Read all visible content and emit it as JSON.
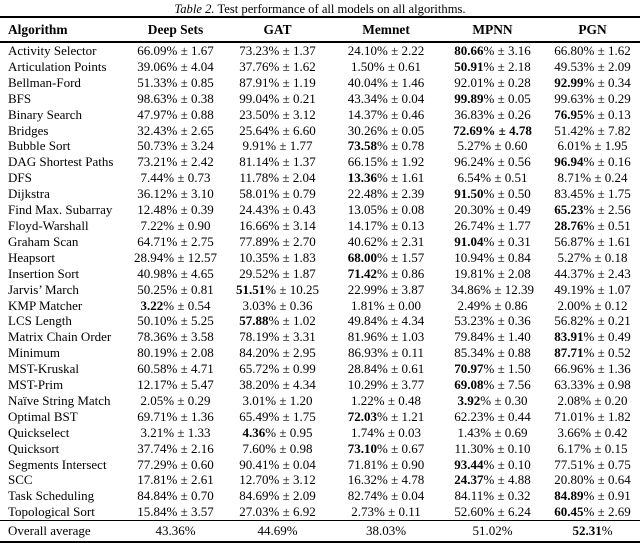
{
  "colors": {
    "background": "#ffffff",
    "text": "#000000",
    "rule": "#000000"
  },
  "caption": {
    "tag": "Table 2.",
    "text": " Test performance of all models on all algorithms."
  },
  "table": {
    "columns": [
      "Algorithm",
      "Deep Sets",
      "GAT",
      "Memnet",
      "MPNN",
      "PGN"
    ],
    "value_format": "{mean}% ± {err}",
    "rows": [
      {
        "algorithm": "Activity Selector",
        "cells": [
          [
            "66.09",
            "1.67"
          ],
          [
            "73.23",
            "1.37"
          ],
          [
            "24.10",
            "2.22"
          ],
          [
            "80.66",
            "3.16"
          ],
          [
            "66.80",
            "1.62"
          ]
        ],
        "best": 3
      },
      {
        "algorithm": "Articulation Points",
        "cells": [
          [
            "39.06",
            "4.04"
          ],
          [
            "37.76",
            "1.62"
          ],
          [
            "1.50",
            "0.61"
          ],
          [
            "50.91",
            "2.18"
          ],
          [
            "49.53",
            "2.09"
          ]
        ],
        "best": 3
      },
      {
        "algorithm": "Bellman-Ford",
        "cells": [
          [
            "51.33",
            "0.85"
          ],
          [
            "87.91",
            "1.19"
          ],
          [
            "40.04",
            "1.46"
          ],
          [
            "92.01",
            "0.28"
          ],
          [
            "92.99",
            "0.34"
          ]
        ],
        "best": 4
      },
      {
        "algorithm": "BFS",
        "cells": [
          [
            "98.63",
            "0.38"
          ],
          [
            "99.04",
            "0.21"
          ],
          [
            "43.34",
            "0.04"
          ],
          [
            "99.89",
            "0.05"
          ],
          [
            "99.63",
            "0.29"
          ]
        ],
        "best": 3
      },
      {
        "algorithm": "Binary Search",
        "cells": [
          [
            "47.97",
            "0.88"
          ],
          [
            "23.50",
            "3.12"
          ],
          [
            "14.37",
            "0.46"
          ],
          [
            "36.83",
            "0.26"
          ],
          [
            "76.95",
            "0.13"
          ]
        ],
        "best": 4
      },
      {
        "algorithm": "Bridges",
        "cells": [
          [
            "32.43",
            "2.65"
          ],
          [
            "25.64",
            "6.60"
          ],
          [
            "30.26",
            "0.05"
          ],
          [
            "72.69",
            "4.78"
          ],
          [
            "51.42",
            "7.82"
          ]
        ],
        "best": 3,
        "bold_err": true
      },
      {
        "algorithm": "Bubble Sort",
        "cells": [
          [
            "50.73",
            "3.24"
          ],
          [
            "9.91",
            "1.77"
          ],
          [
            "73.58",
            "0.78"
          ],
          [
            "5.27",
            "0.60"
          ],
          [
            "6.01",
            "1.95"
          ]
        ],
        "best": 2
      },
      {
        "algorithm": "DAG Shortest Paths",
        "cells": [
          [
            "73.21",
            "2.42"
          ],
          [
            "81.14",
            "1.37"
          ],
          [
            "66.15",
            "1.92"
          ],
          [
            "96.24",
            "0.56"
          ],
          [
            "96.94",
            "0.16"
          ]
        ],
        "best": 4
      },
      {
        "algorithm": "DFS",
        "cells": [
          [
            "7.44",
            "0.73"
          ],
          [
            "11.78",
            "2.04"
          ],
          [
            "13.36",
            "1.61"
          ],
          [
            "6.54",
            "0.51"
          ],
          [
            "8.71",
            "0.24"
          ]
        ],
        "best": 2
      },
      {
        "algorithm": "Dijkstra",
        "cells": [
          [
            "36.12",
            "3.10"
          ],
          [
            "58.01",
            "0.79"
          ],
          [
            "22.48",
            "2.39"
          ],
          [
            "91.50",
            "0.50"
          ],
          [
            "83.45",
            "1.75"
          ]
        ],
        "best": 3
      },
      {
        "algorithm": "Find Max. Subarray",
        "cells": [
          [
            "12.48",
            "0.39"
          ],
          [
            "24.43",
            "0.43"
          ],
          [
            "13.05",
            "0.08"
          ],
          [
            "20.30",
            "0.49"
          ],
          [
            "65.23",
            "2.56"
          ]
        ],
        "best": 4
      },
      {
        "algorithm": "Floyd-Warshall",
        "cells": [
          [
            "7.22",
            "0.90"
          ],
          [
            "16.66",
            "3.14"
          ],
          [
            "14.17",
            "0.13"
          ],
          [
            "26.74",
            "1.77"
          ],
          [
            "28.76",
            "0.51"
          ]
        ],
        "best": 4
      },
      {
        "algorithm": "Graham Scan",
        "cells": [
          [
            "64.71",
            "2.75"
          ],
          [
            "77.89",
            "2.70"
          ],
          [
            "40.62",
            "2.31"
          ],
          [
            "91.04",
            "0.31"
          ],
          [
            "56.87",
            "1.61"
          ]
        ],
        "best": 3
      },
      {
        "algorithm": "Heapsort",
        "cells": [
          [
            "28.94",
            "12.57"
          ],
          [
            "10.35",
            "1.83"
          ],
          [
            "68.00",
            "1.57"
          ],
          [
            "10.94",
            "0.84"
          ],
          [
            "5.27",
            "0.18"
          ]
        ],
        "best": 2
      },
      {
        "algorithm": "Insertion Sort",
        "cells": [
          [
            "40.98",
            "4.65"
          ],
          [
            "29.52",
            "1.87"
          ],
          [
            "71.42",
            "0.86"
          ],
          [
            "19.81",
            "2.08"
          ],
          [
            "44.37",
            "2.43"
          ]
        ],
        "best": 2
      },
      {
        "algorithm": "Jarvis’ March",
        "cells": [
          [
            "50.25",
            "0.81"
          ],
          [
            "51.51",
            "10.25"
          ],
          [
            "22.99",
            "3.87"
          ],
          [
            "34.86",
            "12.39"
          ],
          [
            "49.19",
            "1.07"
          ]
        ],
        "best": 1
      },
      {
        "algorithm": "KMP Matcher",
        "cells": [
          [
            "3.22",
            "0.54"
          ],
          [
            "3.03",
            "0.36"
          ],
          [
            "1.81",
            "0.00"
          ],
          [
            "2.49",
            "0.86"
          ],
          [
            "2.00",
            "0.12"
          ]
        ],
        "best": 0
      },
      {
        "algorithm": "LCS Length",
        "cells": [
          [
            "50.10",
            "5.25"
          ],
          [
            "57.88",
            "1.02"
          ],
          [
            "49.84",
            "4.34"
          ],
          [
            "53.23",
            "0.36"
          ],
          [
            "56.82",
            "0.21"
          ]
        ],
        "best": 1
      },
      {
        "algorithm": "Matrix Chain Order",
        "cells": [
          [
            "78.36",
            "3.58"
          ],
          [
            "78.19",
            "3.31"
          ],
          [
            "81.96",
            "1.03"
          ],
          [
            "79.84",
            "1.40"
          ],
          [
            "83.91",
            "0.49"
          ]
        ],
        "best": 4
      },
      {
        "algorithm": "Minimum",
        "cells": [
          [
            "80.19",
            "2.08"
          ],
          [
            "84.20",
            "2.95"
          ],
          [
            "86.93",
            "0.11"
          ],
          [
            "85.34",
            "0.88"
          ],
          [
            "87.71",
            "0.52"
          ]
        ],
        "best": 4
      },
      {
        "algorithm": "MST-Kruskal",
        "cells": [
          [
            "60.58",
            "4.71"
          ],
          [
            "65.72",
            "0.99"
          ],
          [
            "28.84",
            "0.61"
          ],
          [
            "70.97",
            "1.50"
          ],
          [
            "66.96",
            "1.36"
          ]
        ],
        "best": 3
      },
      {
        "algorithm": "MST-Prim",
        "cells": [
          [
            "12.17",
            "5.47"
          ],
          [
            "38.20",
            "4.34"
          ],
          [
            "10.29",
            "3.77"
          ],
          [
            "69.08",
            "7.56"
          ],
          [
            "63.33",
            "0.98"
          ]
        ],
        "best": 3
      },
      {
        "algorithm": "Naïve String Match",
        "cells": [
          [
            "2.05",
            "0.29"
          ],
          [
            "3.01",
            "1.20"
          ],
          [
            "1.22",
            "0.48"
          ],
          [
            "3.92",
            "0.30"
          ],
          [
            "2.08",
            "0.20"
          ]
        ],
        "best": 3
      },
      {
        "algorithm": "Optimal BST",
        "cells": [
          [
            "69.71",
            "1.36"
          ],
          [
            "65.49",
            "1.75"
          ],
          [
            "72.03",
            "1.21"
          ],
          [
            "62.23",
            "0.44"
          ],
          [
            "71.01",
            "1.82"
          ]
        ],
        "best": 2
      },
      {
        "algorithm": "Quickselect",
        "cells": [
          [
            "3.21",
            "1.33"
          ],
          [
            "4.36",
            "0.95"
          ],
          [
            "1.74",
            "0.03"
          ],
          [
            "1.43",
            "0.69"
          ],
          [
            "3.66",
            "0.42"
          ]
        ],
        "best": 1
      },
      {
        "algorithm": "Quicksort",
        "cells": [
          [
            "37.74",
            "2.16"
          ],
          [
            "7.60",
            "0.98"
          ],
          [
            "73.10",
            "0.67"
          ],
          [
            "11.30",
            "0.10"
          ],
          [
            "6.17",
            "0.15"
          ]
        ],
        "best": 2
      },
      {
        "algorithm": "Segments Intersect",
        "cells": [
          [
            "77.29",
            "0.60"
          ],
          [
            "90.41",
            "0.04"
          ],
          [
            "71.81",
            "0.90"
          ],
          [
            "93.44",
            "0.10"
          ],
          [
            "77.51",
            "0.75"
          ]
        ],
        "best": 3
      },
      {
        "algorithm": "SCC",
        "cells": [
          [
            "17.81",
            "2.61"
          ],
          [
            "12.70",
            "3.12"
          ],
          [
            "16.32",
            "4.78"
          ],
          [
            "24.37",
            "4.88"
          ],
          [
            "20.80",
            "0.64"
          ]
        ],
        "best": 3
      },
      {
        "algorithm": "Task Scheduling",
        "cells": [
          [
            "84.84",
            "0.70"
          ],
          [
            "84.69",
            "2.09"
          ],
          [
            "82.74",
            "0.04"
          ],
          [
            "84.11",
            "0.32"
          ],
          [
            "84.89",
            "0.91"
          ]
        ],
        "best": 4
      },
      {
        "algorithm": "Topological Sort",
        "cells": [
          [
            "15.84",
            "3.57"
          ],
          [
            "27.03",
            "6.92"
          ],
          [
            "2.73",
            "0.11"
          ],
          [
            "52.60",
            "6.24"
          ],
          [
            "60.45",
            "2.69"
          ]
        ],
        "best": 4
      }
    ],
    "overall": {
      "label": "Overall average",
      "values": [
        "43.36",
        "44.69",
        "38.03",
        "51.02",
        "52.31"
      ],
      "best": 4
    }
  }
}
